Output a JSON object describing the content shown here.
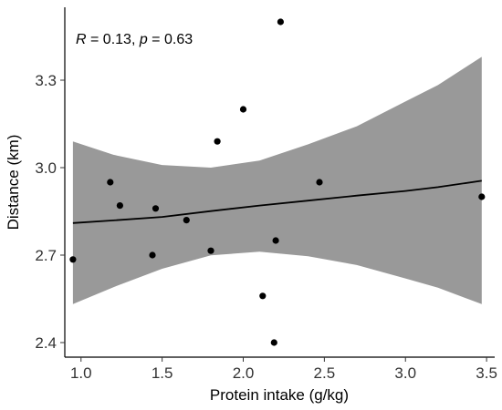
{
  "chart_data": {
    "type": "scatter",
    "title": "",
    "xlabel": "Protein intake (g/kg)",
    "ylabel": "Distance (km)",
    "xlim": [
      0.9,
      3.55
    ],
    "ylim": [
      2.35,
      3.55
    ],
    "xticks": [
      "1.0",
      "1.5",
      "2.0",
      "2.5",
      "3.0",
      "3.5"
    ],
    "yticks": [
      "2.4",
      "2.7",
      "3.0",
      "3.3"
    ],
    "grid": false,
    "colors": {
      "points": "#000000",
      "band": "#999999",
      "line": "#000000"
    },
    "points": [
      {
        "x": 0.95,
        "y": 2.685
      },
      {
        "x": 1.18,
        "y": 2.95
      },
      {
        "x": 1.24,
        "y": 2.87
      },
      {
        "x": 1.44,
        "y": 2.7
      },
      {
        "x": 1.46,
        "y": 2.86
      },
      {
        "x": 1.65,
        "y": 2.82
      },
      {
        "x": 1.8,
        "y": 2.715
      },
      {
        "x": 1.84,
        "y": 3.09
      },
      {
        "x": 2.0,
        "y": 3.2
      },
      {
        "x": 2.12,
        "y": 2.56
      },
      {
        "x": 2.19,
        "y": 2.4
      },
      {
        "x": 2.2,
        "y": 2.75
      },
      {
        "x": 2.23,
        "y": 3.5
      },
      {
        "x": 2.47,
        "y": 2.95
      },
      {
        "x": 3.47,
        "y": 2.9
      }
    ],
    "fit": {
      "x": [
        0.95,
        1.2,
        1.5,
        1.8,
        2.1,
        2.4,
        2.7,
        3.0,
        3.2,
        3.47
      ],
      "y": [
        2.81,
        2.819,
        2.831,
        2.851,
        2.87,
        2.887,
        2.904,
        2.92,
        2.933,
        2.955
      ],
      "upper": [
        3.09,
        3.044,
        3.009,
        3.0,
        3.024,
        3.08,
        3.142,
        3.227,
        3.283,
        3.38
      ],
      "lower": [
        2.532,
        2.59,
        2.653,
        2.699,
        2.712,
        2.696,
        2.666,
        2.62,
        2.588,
        2.532
      ]
    },
    "annotation": {
      "r_label": "R",
      "r_value": " = 0.13, ",
      "p_label": "p",
      "p_value": " = 0.63"
    }
  }
}
